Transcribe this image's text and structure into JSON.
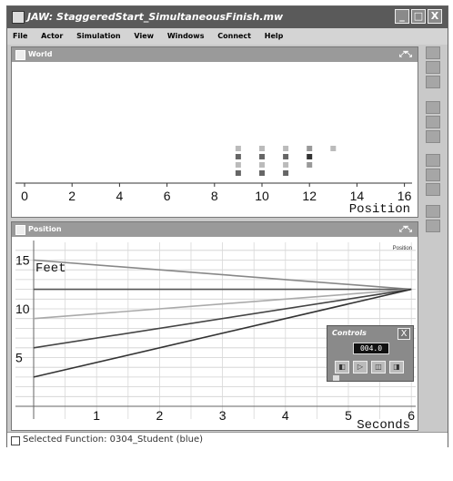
{
  "window": {
    "title": "JAW: StaggeredStart_SimultaneousFinish.mw",
    "minimize": "_",
    "maximize": "□",
    "close": "X"
  },
  "menu": [
    "File",
    "Actor",
    "Simulation",
    "View",
    "Windows",
    "Connect",
    "Help"
  ],
  "world": {
    "title": "World",
    "resize_icon": "⤢⤡",
    "axis_ticks": [
      "0",
      "2",
      "4",
      "6",
      "8",
      "10",
      "12",
      "14",
      "16"
    ],
    "axis_label": "Position"
  },
  "position": {
    "title": "Position",
    "resize_icon": "⤢⤡",
    "corner_label": "Position",
    "y_ticks": [
      "15",
      "10",
      "5"
    ],
    "x_ticks": [
      "1",
      "2",
      "3",
      "4",
      "5",
      "6"
    ],
    "y_label": "Feet",
    "x_label": "Seconds"
  },
  "controls": {
    "title": "Controls",
    "close": "X",
    "display": "004.0"
  },
  "status": {
    "text": "Selected Function: 0304_Student (blue)"
  },
  "chart_data": [
    {
      "type": "scatter",
      "title": "World",
      "xlabel": "Position",
      "xlim": [
        0,
        16
      ],
      "series": [
        {
          "values": [
            [
              9,
              1
            ],
            [
              9,
              2
            ],
            [
              9,
              3
            ],
            [
              9,
              4
            ],
            [
              10,
              1
            ],
            [
              10,
              2
            ],
            [
              10,
              3
            ],
            [
              10,
              4
            ],
            [
              11,
              1
            ],
            [
              11,
              2
            ],
            [
              11,
              3
            ],
            [
              11,
              4
            ],
            [
              12,
              2
            ],
            [
              12,
              3
            ],
            [
              12,
              4
            ],
            [
              13,
              4
            ]
          ]
        }
      ]
    },
    {
      "type": "line",
      "title": "Position",
      "xlabel": "Seconds",
      "ylabel": "Feet",
      "xlim": [
        0,
        6
      ],
      "ylim": [
        0,
        16
      ],
      "grid": true,
      "series": [
        {
          "color": "#888888",
          "x": [
            0,
            6
          ],
          "y": [
            15,
            12
          ]
        },
        {
          "color": "#555555",
          "x": [
            0,
            6
          ],
          "y": [
            12,
            12
          ]
        },
        {
          "color": "#aaaaaa",
          "x": [
            0,
            6
          ],
          "y": [
            9,
            12
          ]
        },
        {
          "color": "#444444",
          "x": [
            0,
            6
          ],
          "y": [
            6,
            12
          ]
        },
        {
          "color": "#333333",
          "x": [
            0,
            6
          ],
          "y": [
            3,
            12
          ]
        }
      ]
    }
  ]
}
